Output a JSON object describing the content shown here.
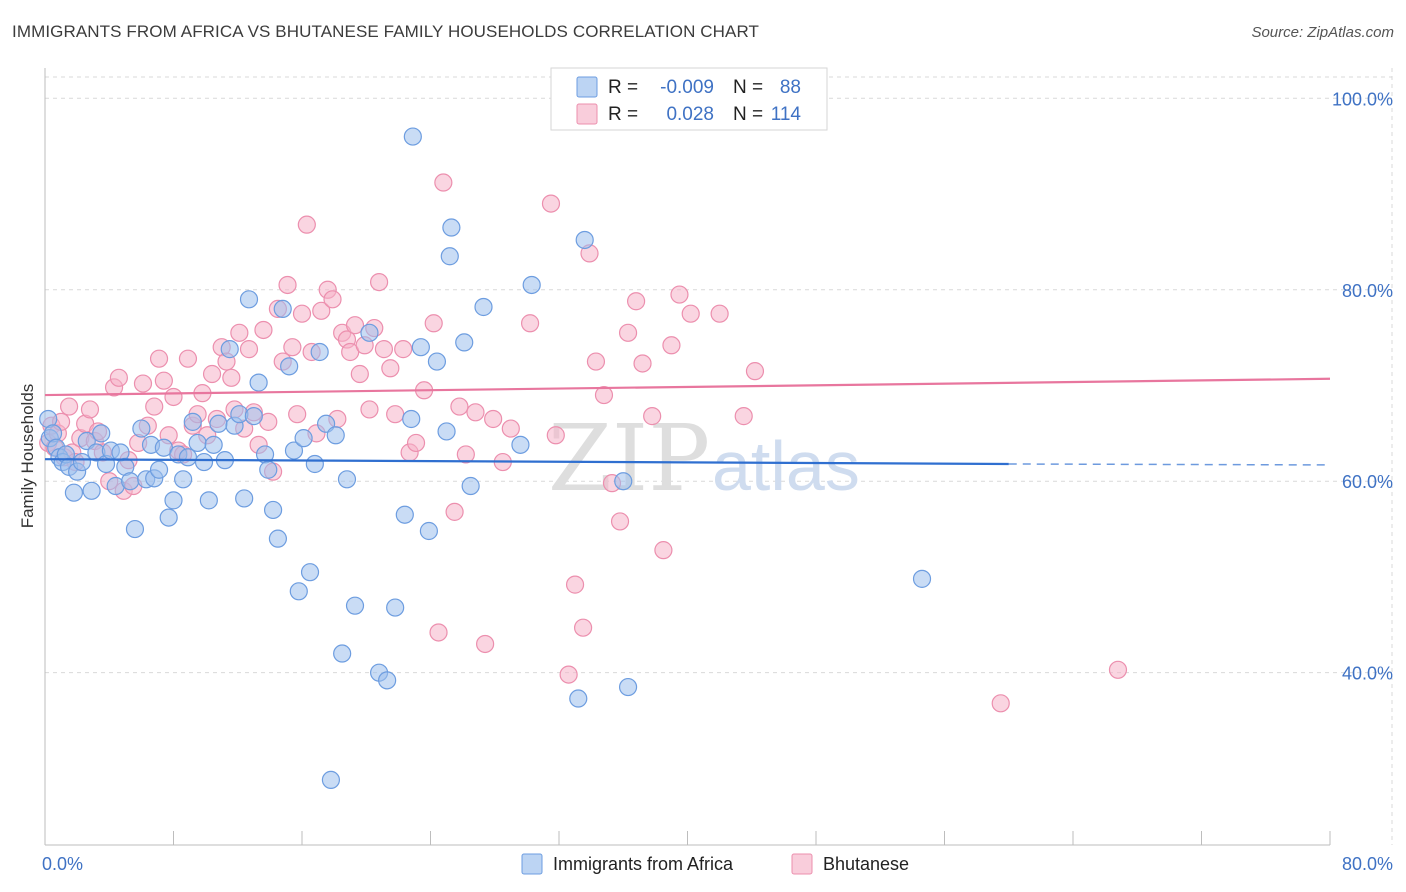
{
  "header": {
    "title": "IMMIGRANTS FROM AFRICA VS BHUTANESE FAMILY HOUSEHOLDS CORRELATION CHART",
    "source": "Source: ZipAtlas.com"
  },
  "colors": {
    "blue_fill": "#9cbfec",
    "blue_stroke": "#6d9de0",
    "blue_line": "#2f6fd0",
    "pink_fill": "#f5b3c8",
    "pink_stroke": "#ec8fae",
    "pink_line": "#e8769e",
    "tick_text": "#3f72c4",
    "grid": "#d9d9d9"
  },
  "legend": {
    "r_label": "R =",
    "n_label": "N =",
    "series": [
      {
        "name": "Immigrants from Africa",
        "r": "-0.009",
        "n": "88"
      },
      {
        "name": "Bhutanese",
        "r": "0.028",
        "n": "114"
      }
    ]
  },
  "watermark": {
    "zip": "ZIP",
    "atlas": "atlas"
  },
  "chart_data": {
    "type": "scatter",
    "title": "IMMIGRANTS FROM AFRICA VS BHUTANESE FAMILY HOUSEHOLDS CORRELATION CHART",
    "xlabel": "",
    "ylabel": "Family Households",
    "xlim": [
      0,
      80
    ],
    "ylim": [
      22,
      104
    ],
    "x_tick_labels": [
      {
        "value": 0,
        "label": "0.0%"
      },
      {
        "value": 80,
        "label": "80.0%"
      }
    ],
    "y_tick_labels": [
      {
        "value": 40,
        "label": "40.0%"
      },
      {
        "value": 60,
        "label": "60.0%"
      },
      {
        "value": 80,
        "label": "80.0%"
      },
      {
        "value": 100,
        "label": "100.0%"
      }
    ],
    "grid": true,
    "legend_position": "top-center",
    "series": [
      {
        "name": "Immigrants from Africa",
        "color": "#9cbfec",
        "trend": {
          "x0": 0,
          "y0": 62.3,
          "x1": 60,
          "y1": 61.8,
          "dashed_to_x": 80,
          "dashed_to_y": 61.7
        },
        "points": [
          [
            0.2,
            66.5
          ],
          [
            0.3,
            64.5
          ],
          [
            0.5,
            65.0
          ],
          [
            0.7,
            63.5
          ],
          [
            0.9,
            62.5
          ],
          [
            1.1,
            62.0
          ],
          [
            1.3,
            62.8
          ],
          [
            1.5,
            61.5
          ],
          [
            1.8,
            58.8
          ],
          [
            2.0,
            61.0
          ],
          [
            2.3,
            62.0
          ],
          [
            2.6,
            64.2
          ],
          [
            2.9,
            59.0
          ],
          [
            3.2,
            63.0
          ],
          [
            3.5,
            65.0
          ],
          [
            3.8,
            61.8
          ],
          [
            4.1,
            63.2
          ],
          [
            4.4,
            59.5
          ],
          [
            4.7,
            63.0
          ],
          [
            5.0,
            61.5
          ],
          [
            5.3,
            60.0
          ],
          [
            5.6,
            55.0
          ],
          [
            6.0,
            65.5
          ],
          [
            6.3,
            60.2
          ],
          [
            6.6,
            63.8
          ],
          [
            6.8,
            60.3
          ],
          [
            7.1,
            61.2
          ],
          [
            7.4,
            63.5
          ],
          [
            7.7,
            56.2
          ],
          [
            8.0,
            58.0
          ],
          [
            8.3,
            62.8
          ],
          [
            8.6,
            60.2
          ],
          [
            8.9,
            62.5
          ],
          [
            9.2,
            66.2
          ],
          [
            9.5,
            64.0
          ],
          [
            9.9,
            62.0
          ],
          [
            10.2,
            58.0
          ],
          [
            10.5,
            63.8
          ],
          [
            10.8,
            66.0
          ],
          [
            11.2,
            62.2
          ],
          [
            11.5,
            73.8
          ],
          [
            11.8,
            65.8
          ],
          [
            12.1,
            67.0
          ],
          [
            12.4,
            58.2
          ],
          [
            12.7,
            79.0
          ],
          [
            13.0,
            66.8
          ],
          [
            13.3,
            70.3
          ],
          [
            13.7,
            62.8
          ],
          [
            13.9,
            61.2
          ],
          [
            14.2,
            57.0
          ],
          [
            14.5,
            54.0
          ],
          [
            14.8,
            78.0
          ],
          [
            15.2,
            72.0
          ],
          [
            15.5,
            63.2
          ],
          [
            15.8,
            48.5
          ],
          [
            16.1,
            64.5
          ],
          [
            16.5,
            50.5
          ],
          [
            16.8,
            61.8
          ],
          [
            17.1,
            73.5
          ],
          [
            17.5,
            66.0
          ],
          [
            17.8,
            28.8
          ],
          [
            18.1,
            64.8
          ],
          [
            18.5,
            42.0
          ],
          [
            18.8,
            60.2
          ],
          [
            19.3,
            47.0
          ],
          [
            20.2,
            75.5
          ],
          [
            20.8,
            40.0
          ],
          [
            21.3,
            39.2
          ],
          [
            21.8,
            46.8
          ],
          [
            22.4,
            56.5
          ],
          [
            22.8,
            66.5
          ],
          [
            22.9,
            96.0
          ],
          [
            23.4,
            74.0
          ],
          [
            23.9,
            54.8
          ],
          [
            24.4,
            72.5
          ],
          [
            25.0,
            65.2
          ],
          [
            25.2,
            83.5
          ],
          [
            25.3,
            86.5
          ],
          [
            26.1,
            74.5
          ],
          [
            26.5,
            59.5
          ],
          [
            27.3,
            78.2
          ],
          [
            29.6,
            63.8
          ],
          [
            30.3,
            80.5
          ],
          [
            33.2,
            37.3
          ],
          [
            33.6,
            85.2
          ],
          [
            36.0,
            60.0
          ],
          [
            36.3,
            38.5
          ],
          [
            54.6,
            49.8
          ]
        ]
      },
      {
        "name": "Bhutanese",
        "color": "#f5b3c8",
        "trend": {
          "x0": 0,
          "y0": 69.0,
          "x1": 80,
          "y1": 70.7
        },
        "points": [
          [
            0.2,
            64.0
          ],
          [
            0.4,
            65.8
          ],
          [
            0.6,
            63.5
          ],
          [
            0.8,
            65.0
          ],
          [
            1.0,
            66.2
          ],
          [
            1.2,
            62.5
          ],
          [
            1.5,
            67.8
          ],
          [
            1.7,
            63.0
          ],
          [
            1.9,
            62.0
          ],
          [
            2.2,
            64.5
          ],
          [
            2.5,
            66.0
          ],
          [
            2.8,
            67.5
          ],
          [
            3.1,
            64.2
          ],
          [
            3.3,
            65.2
          ],
          [
            3.6,
            63.0
          ],
          [
            4.0,
            60.0
          ],
          [
            4.3,
            69.8
          ],
          [
            4.6,
            70.8
          ],
          [
            4.9,
            59.0
          ],
          [
            5.2,
            62.2
          ],
          [
            5.5,
            59.5
          ],
          [
            5.8,
            64.0
          ],
          [
            6.1,
            70.2
          ],
          [
            6.4,
            65.8
          ],
          [
            6.8,
            67.8
          ],
          [
            7.1,
            72.8
          ],
          [
            7.4,
            70.5
          ],
          [
            7.7,
            64.8
          ],
          [
            8.0,
            68.8
          ],
          [
            8.3,
            63.2
          ],
          [
            8.6,
            62.8
          ],
          [
            8.9,
            72.8
          ],
          [
            9.2,
            65.8
          ],
          [
            9.5,
            67.0
          ],
          [
            9.8,
            69.2
          ],
          [
            10.1,
            64.8
          ],
          [
            10.4,
            71.2
          ],
          [
            10.7,
            66.5
          ],
          [
            11.0,
            74.0
          ],
          [
            11.3,
            72.5
          ],
          [
            11.6,
            70.8
          ],
          [
            11.8,
            67.5
          ],
          [
            12.1,
            75.5
          ],
          [
            12.4,
            65.5
          ],
          [
            12.7,
            73.8
          ],
          [
            13.0,
            67.2
          ],
          [
            13.3,
            63.8
          ],
          [
            13.6,
            75.8
          ],
          [
            13.9,
            66.2
          ],
          [
            14.2,
            61.0
          ],
          [
            14.5,
            78.0
          ],
          [
            14.8,
            72.5
          ],
          [
            15.1,
            80.5
          ],
          [
            15.4,
            74.0
          ],
          [
            15.7,
            67.0
          ],
          [
            16.0,
            77.5
          ],
          [
            16.3,
            86.8
          ],
          [
            16.6,
            73.5
          ],
          [
            16.9,
            65.0
          ],
          [
            17.2,
            77.8
          ],
          [
            17.6,
            80.0
          ],
          [
            17.9,
            79.0
          ],
          [
            18.2,
            66.5
          ],
          [
            18.5,
            75.5
          ],
          [
            18.8,
            74.8
          ],
          [
            19.0,
            73.5
          ],
          [
            19.3,
            76.3
          ],
          [
            19.6,
            71.2
          ],
          [
            19.9,
            74.2
          ],
          [
            20.2,
            67.5
          ],
          [
            20.5,
            76.0
          ],
          [
            20.8,
            80.8
          ],
          [
            21.1,
            73.8
          ],
          [
            21.5,
            71.8
          ],
          [
            21.8,
            67.0
          ],
          [
            22.3,
            73.8
          ],
          [
            22.7,
            63.0
          ],
          [
            23.1,
            64.0
          ],
          [
            23.6,
            69.5
          ],
          [
            24.2,
            76.5
          ],
          [
            24.5,
            44.2
          ],
          [
            24.8,
            91.2
          ],
          [
            25.5,
            56.8
          ],
          [
            25.8,
            67.8
          ],
          [
            26.2,
            62.8
          ],
          [
            26.8,
            67.2
          ],
          [
            27.4,
            43.0
          ],
          [
            27.9,
            66.5
          ],
          [
            28.5,
            62.0
          ],
          [
            29.0,
            65.5
          ],
          [
            30.2,
            76.5
          ],
          [
            31.5,
            89.0
          ],
          [
            31.8,
            64.8
          ],
          [
            32.6,
            39.8
          ],
          [
            33.0,
            49.2
          ],
          [
            33.5,
            44.7
          ],
          [
            33.9,
            83.8
          ],
          [
            34.3,
            72.5
          ],
          [
            34.8,
            69.0
          ],
          [
            35.3,
            59.8
          ],
          [
            35.8,
            55.8
          ],
          [
            36.3,
            75.5
          ],
          [
            36.8,
            78.8
          ],
          [
            37.2,
            72.3
          ],
          [
            37.8,
            66.8
          ],
          [
            38.5,
            52.8
          ],
          [
            39.0,
            74.2
          ],
          [
            39.5,
            79.5
          ],
          [
            40.2,
            77.5
          ],
          [
            42.0,
            77.5
          ],
          [
            43.5,
            66.8
          ],
          [
            44.2,
            71.5
          ],
          [
            59.5,
            36.8
          ],
          [
            66.8,
            40.3
          ]
        ]
      }
    ]
  }
}
